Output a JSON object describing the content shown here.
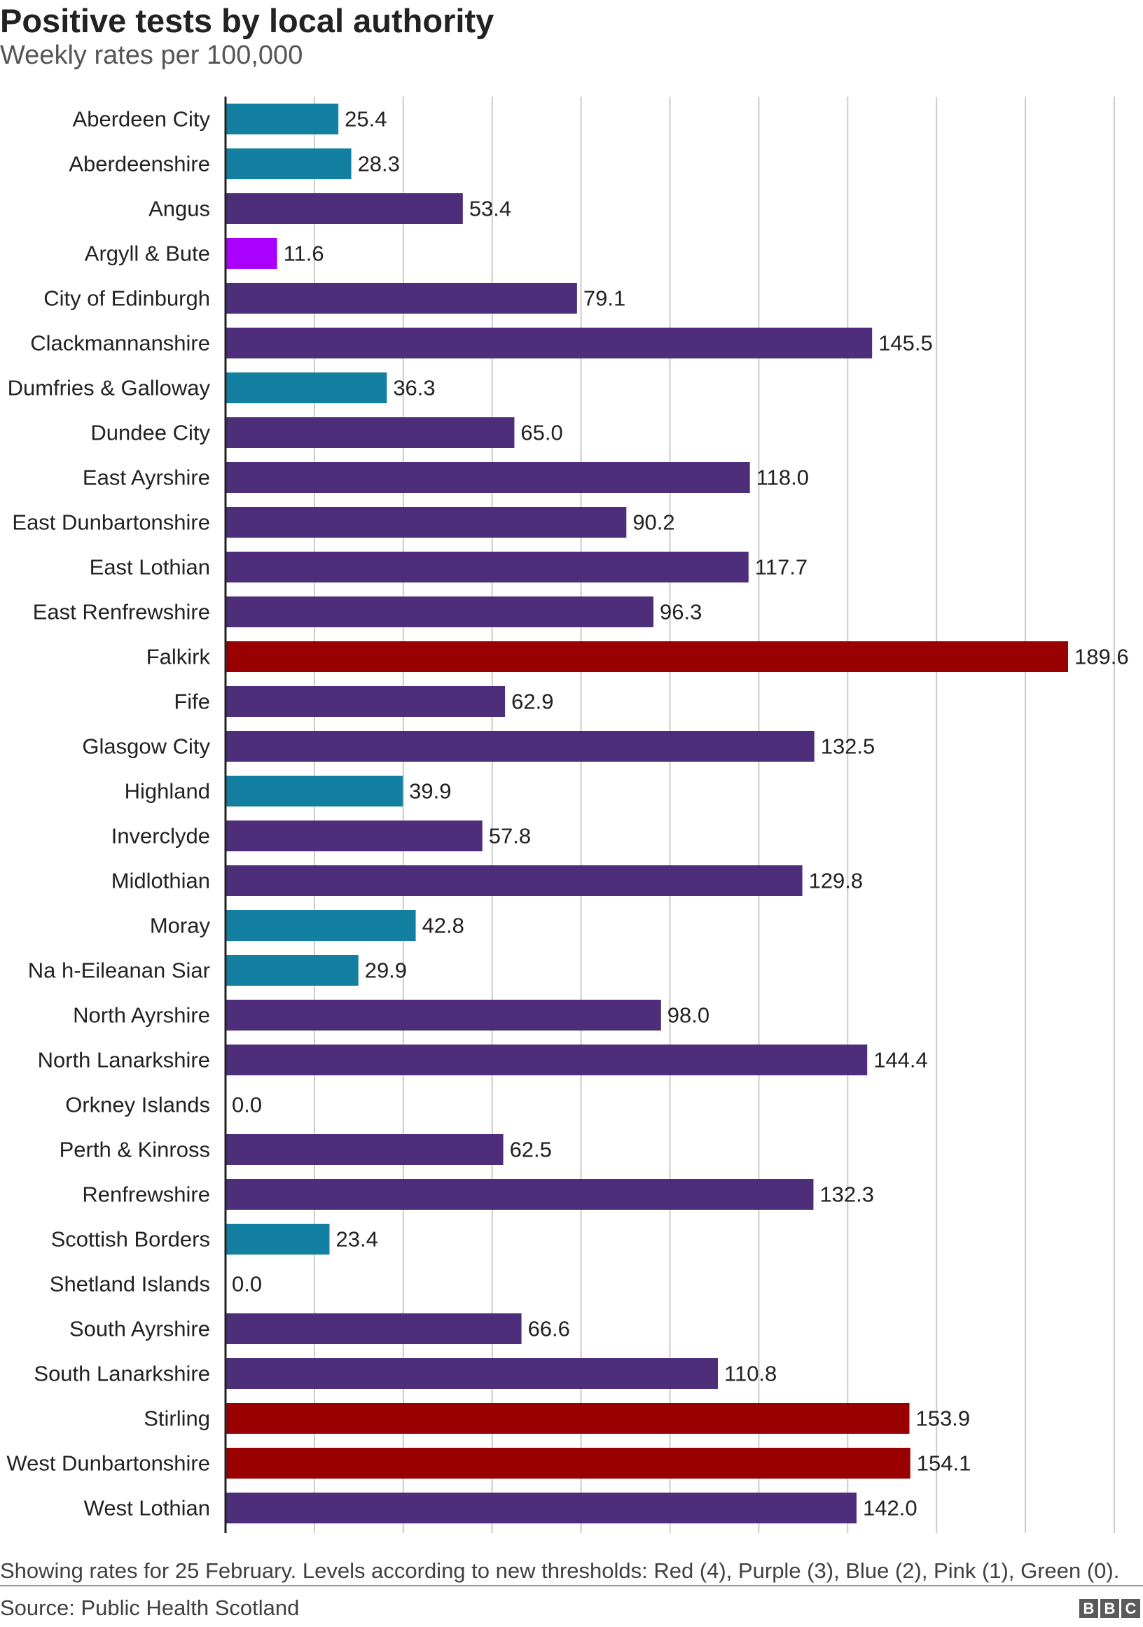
{
  "header": {
    "title": "Positive tests by local authority",
    "subtitle": "Weekly rates per 100,000"
  },
  "footer": {
    "note": "Showing rates for 25 February. Levels according to new thresholds: Red (4), Purple (3), Blue (2), Pink (1), Green (0).",
    "source": "Source: Public Health Scotland",
    "logo": [
      "B",
      "B",
      "C"
    ]
  },
  "colors": {
    "level4_red": "#990000",
    "level3_purple": "#4e2e7a",
    "level2_blue": "#1380a1",
    "level1_pink": "#aa00ff",
    "gridline": "#cccccc",
    "axis": "#222222"
  },
  "chart_data": {
    "type": "bar",
    "orientation": "horizontal",
    "title": "Positive tests by local authority",
    "subtitle": "Weekly rates per 100,000",
    "xlim": [
      0,
      200
    ],
    "grid": true,
    "categories": [
      "Aberdeen City",
      "Aberdeenshire",
      "Angus",
      "Argyll & Bute",
      "City of Edinburgh",
      "Clackmannanshire",
      "Dumfries & Galloway",
      "Dundee City",
      "East Ayrshire",
      "East Dunbartonshire",
      "East Lothian",
      "East Renfrewshire",
      "Falkirk",
      "Fife",
      "Glasgow City",
      "Highland",
      "Inverclyde",
      "Midlothian",
      "Moray",
      "Na h-Eileanan Siar",
      "North Ayrshire",
      "North Lanarkshire",
      "Orkney Islands",
      "Perth & Kinross",
      "Renfrewshire",
      "Scottish Borders",
      "Shetland Islands",
      "South Ayrshire",
      "South Lanarkshire",
      "Stirling",
      "West Dunbartonshire",
      "West Lothian"
    ],
    "values": [
      25.4,
      28.3,
      53.4,
      11.6,
      79.1,
      145.5,
      36.3,
      65.0,
      118.0,
      90.2,
      117.7,
      96.3,
      189.6,
      62.9,
      132.5,
      39.9,
      57.8,
      129.8,
      42.8,
      29.9,
      98.0,
      144.4,
      0.0,
      62.5,
      132.3,
      23.4,
      0.0,
      66.6,
      110.8,
      153.9,
      154.1,
      142.0
    ],
    "labels": [
      "25.4",
      "28.3",
      "53.4",
      "11.6",
      "79.1",
      "145.5",
      "36.3",
      "65.0",
      "118.0",
      "90.2",
      "117.7",
      "96.3",
      "189.6",
      "62.9",
      "132.5",
      "39.9",
      "57.8",
      "129.8",
      "42.8",
      "29.9",
      "98.0",
      "144.4",
      "0.0",
      "62.5",
      "132.3",
      "23.4",
      "0.0",
      "66.6",
      "110.8",
      "153.9",
      "154.1",
      "142.0"
    ],
    "levels": [
      2,
      2,
      3,
      1,
      3,
      3,
      2,
      3,
      3,
      3,
      3,
      3,
      4,
      3,
      3,
      2,
      3,
      3,
      2,
      2,
      3,
      3,
      0,
      3,
      3,
      2,
      0,
      3,
      3,
      4,
      4,
      3
    ]
  }
}
